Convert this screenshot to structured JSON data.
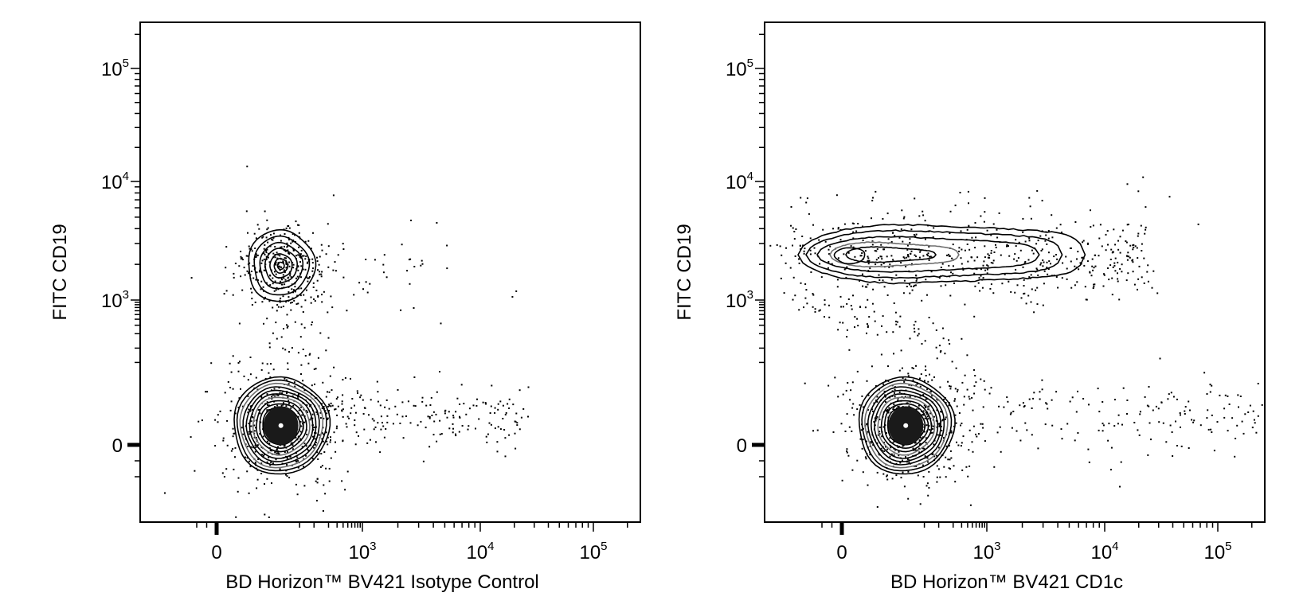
{
  "chart_data": [
    {
      "type": "scatter",
      "subtype": "flow-cytometry-contour",
      "xlabel": "BD Horizon™ BV421 Isotype Control",
      "ylabel": "FITC CD19",
      "x_scale": "biexponential",
      "y_scale": "biexponential",
      "x_ticks": [
        {
          "base": "0",
          "exp": ""
        },
        {
          "base": "10",
          "exp": "3"
        },
        {
          "base": "10",
          "exp": "4"
        },
        {
          "base": "10",
          "exp": "5"
        }
      ],
      "y_ticks": [
        {
          "base": "0",
          "exp": ""
        },
        {
          "base": "10",
          "exp": "3"
        },
        {
          "base": "10",
          "exp": "4"
        },
        {
          "base": "10",
          "exp": "5"
        }
      ],
      "populations": [
        {
          "x_center": 20,
          "y_center": 2200,
          "spread": "tight"
        },
        {
          "x_center": 20,
          "y_center": 20,
          "spread": "dense"
        }
      ]
    },
    {
      "type": "scatter",
      "subtype": "flow-cytometry-contour",
      "xlabel": "BD Horizon™ BV421 CD1c",
      "ylabel": "FITC CD19",
      "x_scale": "biexponential",
      "y_scale": "biexponential",
      "x_ticks": [
        {
          "base": "0",
          "exp": ""
        },
        {
          "base": "10",
          "exp": "3"
        },
        {
          "base": "10",
          "exp": "4"
        },
        {
          "base": "10",
          "exp": "5"
        }
      ],
      "y_ticks": [
        {
          "base": "0",
          "exp": ""
        },
        {
          "base": "10",
          "exp": "3"
        },
        {
          "base": "10",
          "exp": "4"
        },
        {
          "base": "10",
          "exp": "5"
        }
      ],
      "populations": [
        {
          "x_range": [
            0,
            5000
          ],
          "y_center": 2000,
          "spread": "elongated"
        },
        {
          "x_center": 20,
          "y_center": 20,
          "spread": "dense"
        }
      ]
    }
  ]
}
